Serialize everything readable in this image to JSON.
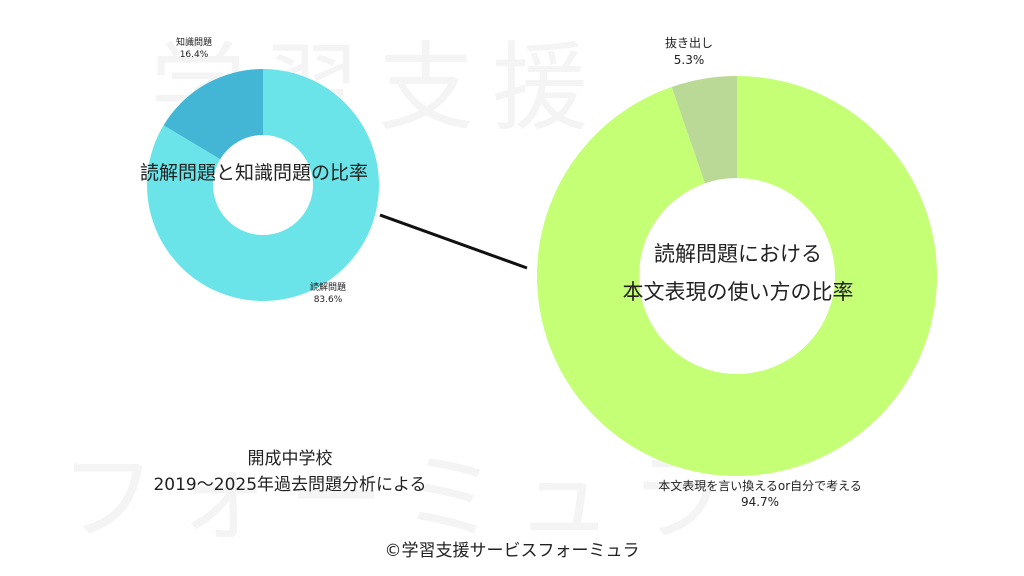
{
  "watermark": {
    "line1": "学習支援",
    "line2": "フォーミュラ"
  },
  "chart_data": [
    {
      "type": "pie",
      "title": "読解問題と知識問題の比率",
      "slices": [
        {
          "label": "読解問題",
          "value": 83.6,
          "display": "83.6%",
          "color": "#6ae4e8"
        },
        {
          "label": "知識問題",
          "value": 16.4,
          "display": "16.4%",
          "color": "#42b6d4"
        }
      ]
    },
    {
      "type": "pie",
      "title_lines": [
        "読解問題における",
        "本文表現の使い方の比率"
      ],
      "slices": [
        {
          "label": "本文表現を言い換えるor自分で考える",
          "value": 94.7,
          "display": "94.7%",
          "color": "#c4ff75"
        },
        {
          "label": "抜き出し",
          "value": 5.3,
          "display": "5.3%",
          "color": "#bbd996"
        }
      ]
    }
  ],
  "source": {
    "line1": "開成中学校",
    "line2": "2019〜2025年過去問題分析による"
  },
  "copyright": "©学習支援サービスフォーミュラ"
}
